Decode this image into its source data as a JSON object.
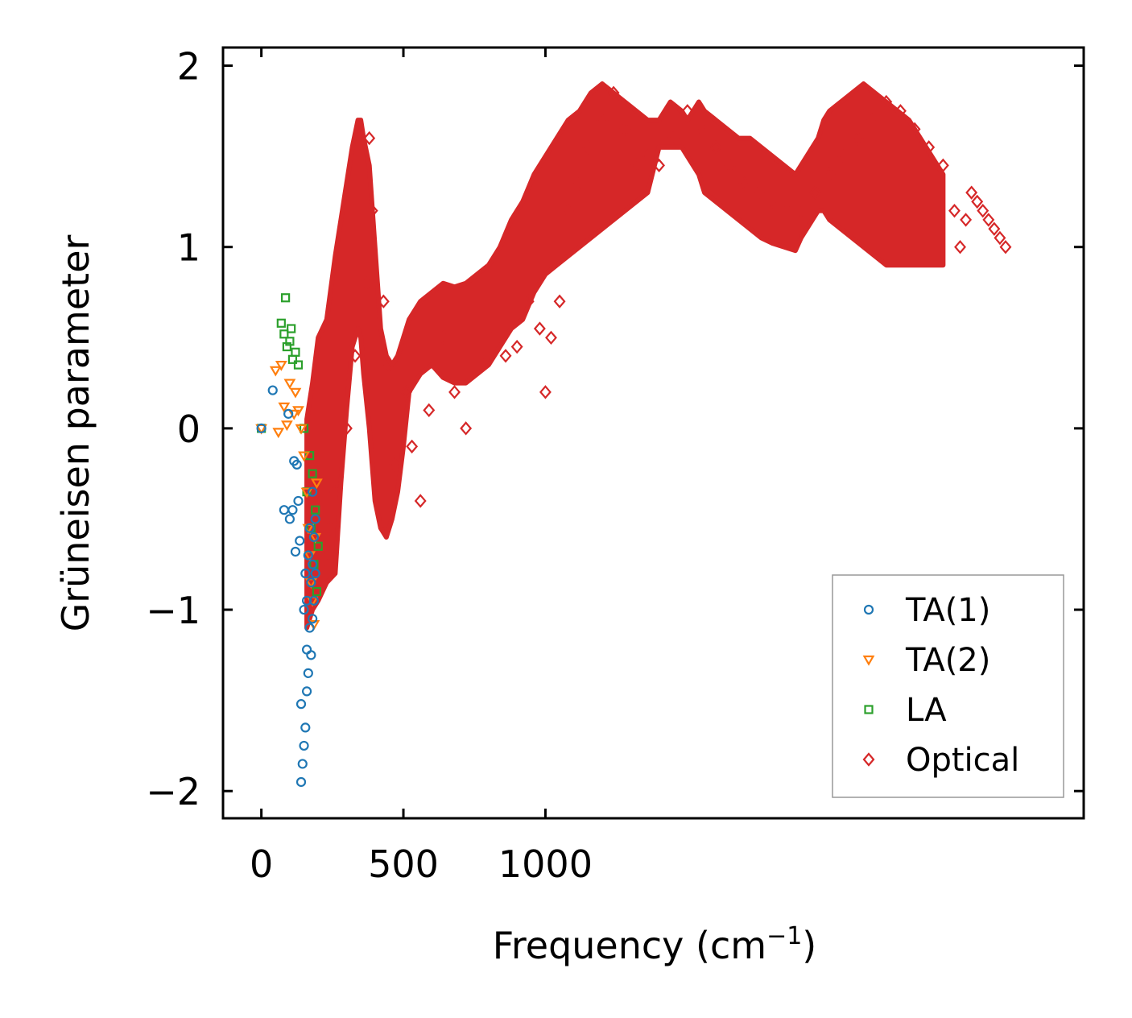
{
  "chart_data": {
    "type": "scatter",
    "xlabel": "Frequency (cm",
    "xlabel_sup": "−1",
    "xlabel_end": ")",
    "ylabel": "Grüneisen parameter",
    "xlim": [
      -135,
      2895
    ],
    "ylim": [
      -2.15,
      2.1
    ],
    "x_ticks": [
      0,
      500,
      1000
    ],
    "x_tick_labels": [
      "0",
      "500",
      "1000"
    ],
    "y_ticks": [
      -2,
      -1,
      0,
      1,
      2
    ],
    "y_tick_labels": [
      "−2",
      "−1",
      "0",
      "1",
      "2"
    ],
    "legend_position": "lower-right",
    "colors": {
      "ta1": "#1f77b4",
      "ta2": "#ff7f0e",
      "la": "#2ca02c",
      "optical": "#d62728"
    },
    "series": [
      {
        "name": "TA(1)",
        "key": "ta1",
        "marker": "circle",
        "x": [
          0,
          40,
          80,
          95,
          100,
          110,
          115,
          120,
          125,
          130,
          135,
          140,
          140,
          145,
          150,
          150,
          155,
          155,
          160,
          160,
          160,
          165,
          165,
          170,
          170,
          175,
          175,
          180,
          180,
          180,
          185,
          185,
          190,
          190
        ],
        "y": [
          0,
          0.21,
          -0.45,
          0.08,
          -0.5,
          -0.45,
          -0.18,
          -0.68,
          -0.2,
          -0.4,
          -0.62,
          -1.95,
          -1.52,
          -1.85,
          -1.75,
          -1.0,
          -1.65,
          -0.8,
          -1.45,
          -1.22,
          -0.95,
          -0.7,
          -1.35,
          -1.1,
          -0.55,
          -1.25,
          -0.85,
          -1.05,
          -0.75,
          -0.35,
          -0.95,
          -0.6,
          -0.8,
          -0.5
        ]
      },
      {
        "name": "TA(2)",
        "key": "ta2",
        "marker": "triangle",
        "x": [
          0,
          50,
          60,
          70,
          80,
          90,
          100,
          115,
          120,
          130,
          140,
          150,
          160,
          165,
          170,
          175,
          180,
          185,
          190,
          195
        ],
        "y": [
          0,
          0.32,
          -0.02,
          0.35,
          0.12,
          0.02,
          0.25,
          0.08,
          0.2,
          0.1,
          0.0,
          -0.15,
          -0.35,
          -0.55,
          -0.7,
          -0.85,
          -0.95,
          -1.08,
          -0.6,
          -0.3
        ]
      },
      {
        "name": "LA",
        "key": "la",
        "marker": "square",
        "x": [
          0,
          70,
          80,
          85,
          90,
          100,
          105,
          110,
          120,
          130,
          150,
          160,
          170,
          175,
          180,
          185,
          190,
          195,
          200
        ],
        "y": [
          0,
          0.58,
          0.52,
          0.72,
          0.45,
          0.48,
          0.55,
          0.38,
          0.42,
          0.35,
          0.0,
          -0.35,
          -0.15,
          -0.55,
          -0.25,
          -0.75,
          -0.45,
          -0.9,
          -0.65
        ]
      },
      {
        "name": "Optical",
        "key": "optical",
        "marker": "diamond",
        "band_x": [
          160,
          180,
          200,
          230,
          260,
          280,
          300,
          320,
          340,
          350,
          360,
          380,
          400,
          420,
          440,
          460,
          480,
          500,
          520,
          560,
          600,
          640,
          680,
          720,
          760,
          800,
          840,
          880,
          920,
          960,
          1000,
          1040,
          1080,
          1120,
          1160,
          1200,
          1240,
          1280,
          1320,
          1360,
          1400,
          1440,
          1480,
          1500,
          1520,
          1540,
          1560,
          1600,
          1640,
          1680,
          1720,
          1760,
          1800,
          1840,
          1880,
          1900,
          1920,
          1940,
          1960,
          1980,
          2000,
          2040,
          2080,
          2120,
          2160,
          2200,
          2240,
          2280,
          2320,
          2360,
          2400
        ],
        "band_lower": [
          -1.1,
          -1.0,
          -0.95,
          -0.85,
          -0.8,
          -0.3,
          0.1,
          0.45,
          0.55,
          0.5,
          0.3,
          0.0,
          -0.4,
          -0.55,
          -0.6,
          -0.5,
          -0.35,
          -0.1,
          0.2,
          0.3,
          0.35,
          0.28,
          0.25,
          0.25,
          0.3,
          0.35,
          0.45,
          0.55,
          0.6,
          0.75,
          0.85,
          0.9,
          0.95,
          1.0,
          1.05,
          1.1,
          1.15,
          1.2,
          1.25,
          1.3,
          1.55,
          1.55,
          1.55,
          1.5,
          1.45,
          1.4,
          1.3,
          1.25,
          1.2,
          1.15,
          1.1,
          1.05,
          1.02,
          1.0,
          0.98,
          1.05,
          1.1,
          1.15,
          1.2,
          1.2,
          1.15,
          1.1,
          1.05,
          1.0,
          0.95,
          0.9,
          0.9,
          0.9,
          0.9,
          0.9,
          0.9
        ],
        "band_upper": [
          0.05,
          0.25,
          0.5,
          0.6,
          0.95,
          1.15,
          1.35,
          1.55,
          1.7,
          1.7,
          1.6,
          1.45,
          1.0,
          0.55,
          0.4,
          0.35,
          0.4,
          0.5,
          0.6,
          0.7,
          0.75,
          0.8,
          0.78,
          0.8,
          0.85,
          0.9,
          1.0,
          1.15,
          1.25,
          1.4,
          1.5,
          1.6,
          1.7,
          1.75,
          1.85,
          1.9,
          1.85,
          1.8,
          1.75,
          1.7,
          1.7,
          1.8,
          1.75,
          1.7,
          1.75,
          1.8,
          1.75,
          1.7,
          1.65,
          1.6,
          1.6,
          1.55,
          1.5,
          1.45,
          1.4,
          1.45,
          1.5,
          1.55,
          1.6,
          1.7,
          1.75,
          1.8,
          1.85,
          1.9,
          1.85,
          1.8,
          1.75,
          1.7,
          1.6,
          1.5,
          1.4
        ],
        "x": [
          180,
          200,
          220,
          240,
          260,
          300,
          330,
          370,
          380,
          390,
          430,
          450,
          470,
          510,
          530,
          560,
          590,
          640,
          680,
          720,
          780,
          820,
          860,
          900,
          940,
          980,
          1000,
          1020,
          1050,
          1080,
          1120,
          1150,
          1200,
          1240,
          1280,
          1320,
          1360,
          1400,
          1450,
          1500,
          1550,
          1600,
          1650,
          1700,
          1750,
          1800,
          1850,
          1900,
          1950,
          2000,
          2050,
          2100,
          2150,
          2200,
          2250,
          2300,
          2350,
          2400,
          2440,
          2460,
          2480,
          2500,
          2520,
          2540,
          2560,
          2580,
          2600,
          2620
        ],
        "y": [
          -0.95,
          -0.9,
          -0.72,
          -0.55,
          -0.35,
          0.0,
          0.4,
          0.8,
          1.6,
          1.2,
          0.7,
          0.35,
          -0.2,
          0.2,
          -0.1,
          -0.4,
          0.1,
          0.5,
          0.2,
          0.0,
          0.35,
          0.55,
          0.4,
          0.45,
          0.7,
          0.55,
          0.2,
          0.5,
          0.7,
          1.2,
          1.35,
          1.55,
          1.7,
          1.85,
          1.65,
          1.45,
          1.5,
          1.45,
          1.6,
          1.75,
          1.65,
          1.55,
          1.45,
          1.35,
          1.3,
          1.25,
          1.2,
          1.2,
          1.3,
          1.4,
          1.5,
          1.6,
          1.7,
          1.8,
          1.75,
          1.65,
          1.55,
          1.45,
          1.2,
          1.0,
          1.15,
          1.3,
          1.25,
          1.2,
          1.15,
          1.1,
          1.05,
          1.0
        ]
      }
    ]
  }
}
